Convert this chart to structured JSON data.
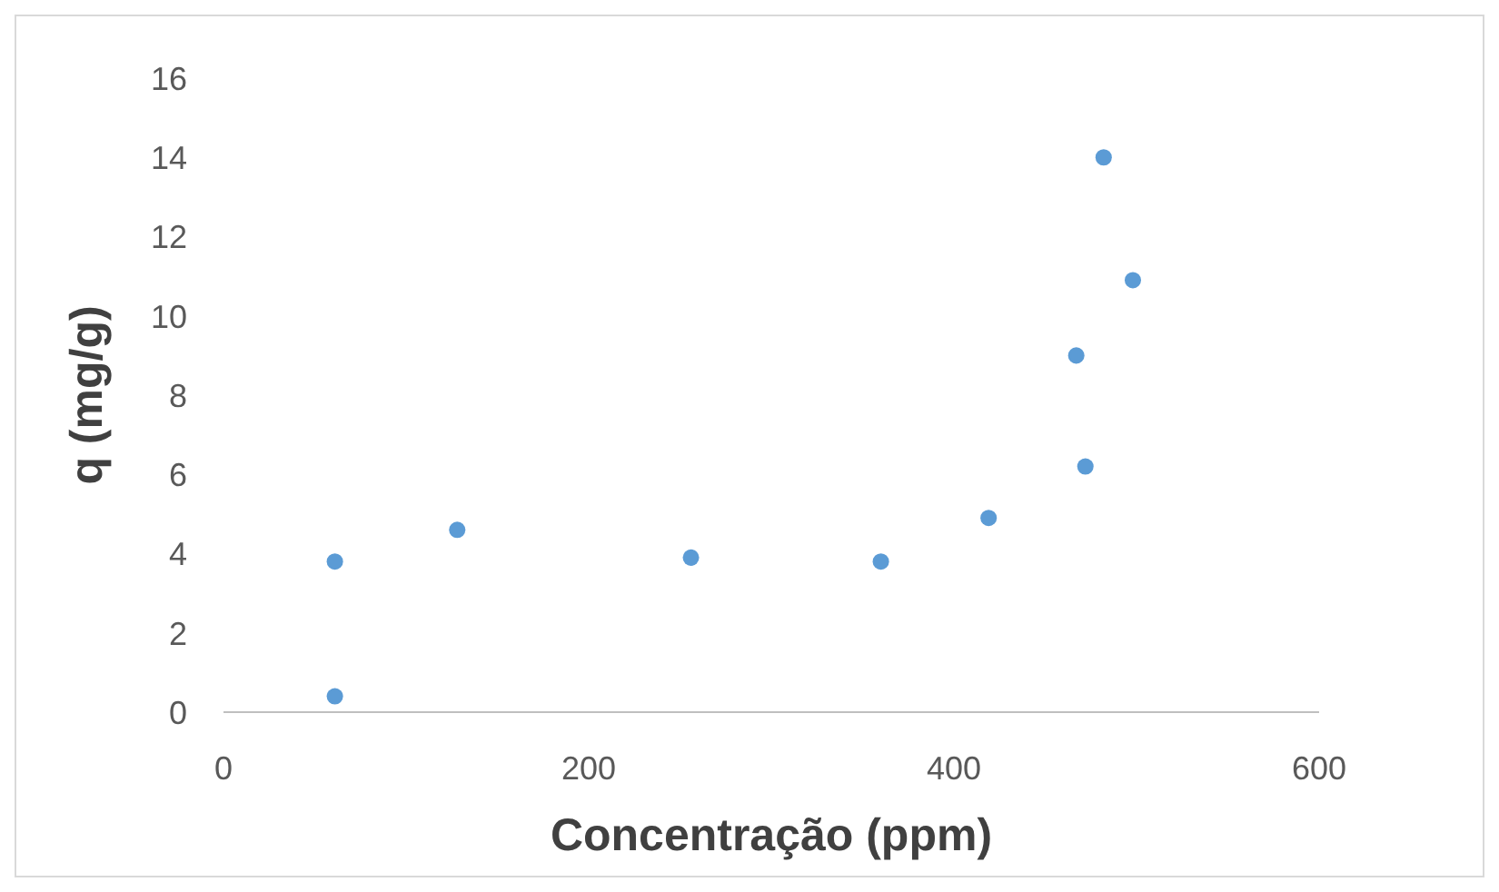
{
  "chart_data": {
    "type": "scatter",
    "xlabel": "Concentração (ppm)",
    "ylabel": "q (mg/g)",
    "x": [
      61,
      61,
      128,
      256,
      360,
      419,
      467,
      472,
      482,
      498
    ],
    "series": [
      {
        "color": "#5b9bd5",
        "values": [
          3.8,
          0.4,
          4.6,
          3.9,
          3.8,
          4.9,
          9.0,
          6.2,
          14.0,
          10.9
        ]
      }
    ],
    "xlim": [
      0,
      600
    ],
    "xticks": [
      0,
      200,
      400,
      600
    ],
    "ylim": [
      0,
      16
    ],
    "yticks": [
      0,
      2,
      4,
      6,
      8,
      10,
      12,
      14,
      16
    ],
    "grid": false,
    "legend": false,
    "marker": "circle"
  }
}
